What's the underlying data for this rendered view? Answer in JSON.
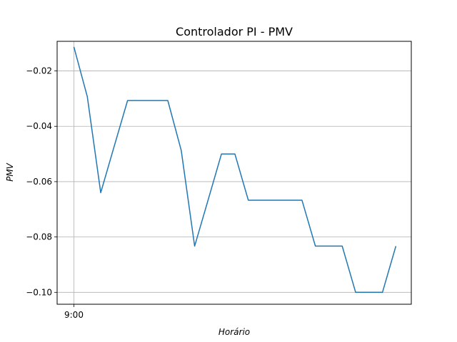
{
  "chart_data": {
    "type": "line",
    "title": "Controlador PI - PMV",
    "xlabel": "Horário",
    "ylabel": "PMV",
    "x_tick_labels": [
      "9:00"
    ],
    "x_ticks": [
      0
    ],
    "xlim": [
      -1.25,
      25.15
    ],
    "ylim": [
      -0.1043,
      -0.0093
    ],
    "y_ticks": [
      -0.02,
      -0.04,
      -0.06,
      -0.08,
      -0.1
    ],
    "y_tick_labels": [
      "−0.02",
      "−0.04",
      "−0.06",
      "−0.08",
      "−0.10"
    ],
    "grid": true,
    "legend": "none",
    "series": [
      {
        "color": "#1f77b4",
        "x": [
          0,
          1,
          2,
          3,
          4,
          5,
          6,
          7,
          8,
          9,
          10,
          11,
          12,
          13,
          14,
          15,
          16,
          17,
          18,
          19,
          20,
          21,
          22,
          23,
          24
        ],
        "values": [
          -0.0113,
          -0.0293,
          -0.064,
          -0.0473,
          -0.0307,
          -0.0307,
          -0.0307,
          -0.0307,
          -0.0487,
          -0.0833,
          -0.0667,
          -0.05,
          -0.05,
          -0.0667,
          -0.0667,
          -0.0667,
          -0.0667,
          -0.0667,
          -0.0833,
          -0.0833,
          -0.0833,
          -0.1,
          -0.1,
          -0.1,
          -0.0833
        ]
      }
    ]
  }
}
